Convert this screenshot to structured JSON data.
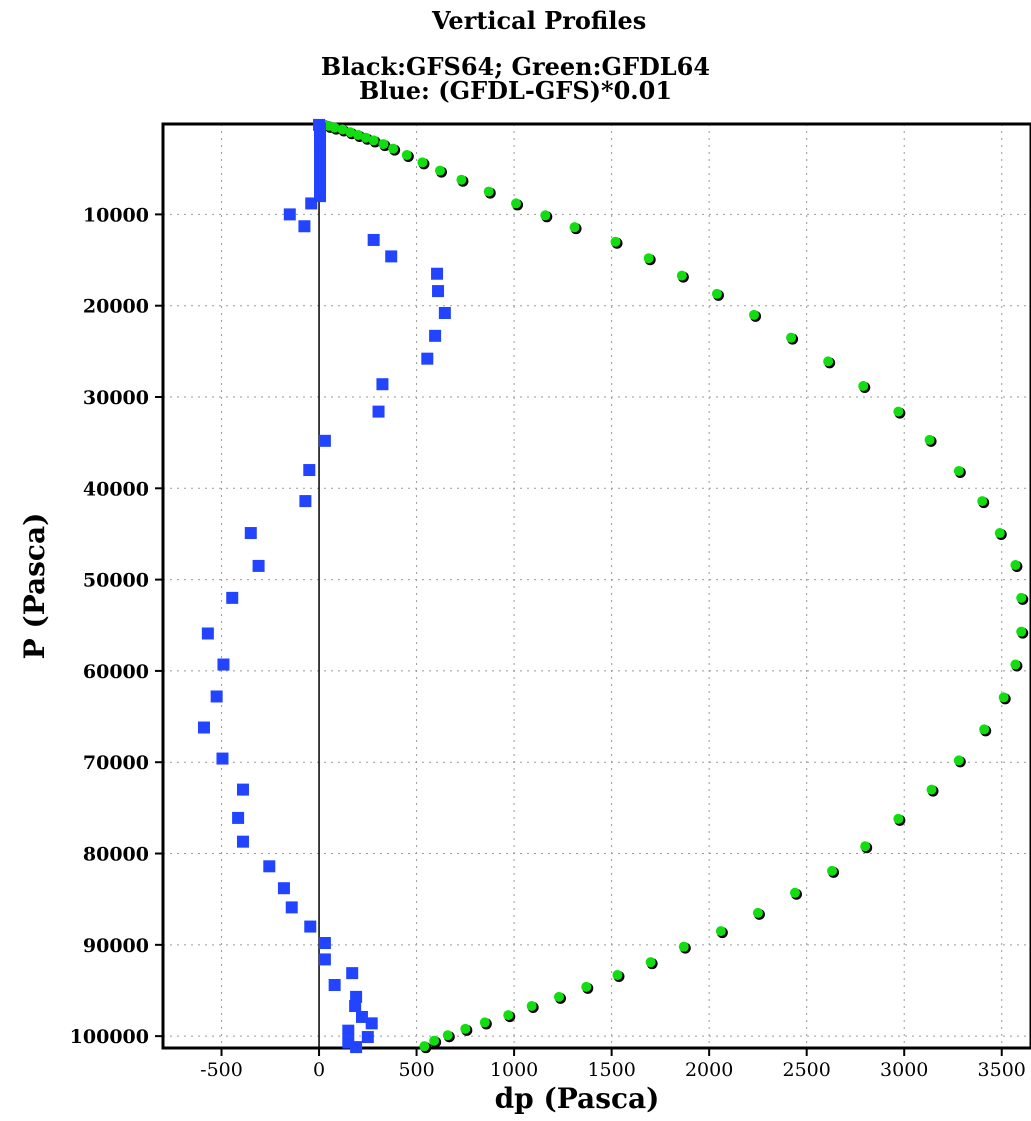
{
  "chart_data": {
    "type": "scatter",
    "title": "Vertical Profiles",
    "subtitle_lines": [
      "Black:GFS64; Green:GFDL64",
      "Blue: (GFDL-GFS)*0.01"
    ],
    "xlabel": "dp (Pasca)",
    "ylabel": "P (Pasca)",
    "xlim": [
      -800,
      3650
    ],
    "ylim": [
      101300,
      100
    ],
    "y_inverted": true,
    "grid": true,
    "xticks": [
      -500,
      0,
      500,
      1000,
      1500,
      2000,
      2500,
      3000,
      3500
    ],
    "xtick_labels": [
      "-500",
      "0",
      "500",
      "1000",
      "1500",
      "2000",
      "2500",
      "3000",
      "3500"
    ],
    "yticks": [
      10000,
      20000,
      30000,
      40000,
      50000,
      60000,
      70000,
      80000,
      90000,
      100000
    ],
    "ytick_labels": [
      "10000",
      "20000",
      "30000",
      "40000",
      "50000",
      "60000",
      "70000",
      "80000",
      "90000",
      "100000"
    ],
    "zero_line_x": 0,
    "series": [
      {
        "name": "Black:GFS64",
        "color": "#000000",
        "marker": "circle",
        "points": [
          [
            20,
            100
          ],
          [
            50,
            300
          ],
          [
            80,
            500
          ],
          [
            120,
            700
          ],
          [
            160,
            1000
          ],
          [
            200,
            1300
          ],
          [
            240,
            1600
          ],
          [
            280,
            1900
          ],
          [
            330,
            2300
          ],
          [
            380,
            2800
          ],
          [
            450,
            3500
          ],
          [
            530,
            4300
          ],
          [
            620,
            5200
          ],
          [
            730,
            6200
          ],
          [
            870,
            7500
          ],
          [
            1010,
            8800
          ],
          [
            1160,
            10100
          ],
          [
            1310,
            11400
          ],
          [
            1520,
            13000
          ],
          [
            1690,
            14800
          ],
          [
            1860,
            16700
          ],
          [
            2040,
            18700
          ],
          [
            2230,
            21000
          ],
          [
            2420,
            23500
          ],
          [
            2610,
            26100
          ],
          [
            2790,
            28800
          ],
          [
            2970,
            31600
          ],
          [
            3130,
            34700
          ],
          [
            3280,
            38100
          ],
          [
            3400,
            41400
          ],
          [
            3490,
            44900
          ],
          [
            3570,
            48400
          ],
          [
            3600,
            52000
          ],
          [
            3600,
            55700
          ],
          [
            3570,
            59300
          ],
          [
            3510,
            62900
          ],
          [
            3410,
            66400
          ],
          [
            3280,
            69800
          ],
          [
            3140,
            73000
          ],
          [
            2970,
            76200
          ],
          [
            2800,
            79200
          ],
          [
            2630,
            81900
          ],
          [
            2440,
            84300
          ],
          [
            2250,
            86500
          ],
          [
            2060,
            88500
          ],
          [
            1870,
            90200
          ],
          [
            1700,
            91900
          ],
          [
            1530,
            93300
          ],
          [
            1370,
            94600
          ],
          [
            1230,
            95700
          ],
          [
            1090,
            96700
          ],
          [
            970,
            97700
          ],
          [
            850,
            98500
          ],
          [
            750,
            99200
          ],
          [
            660,
            99900
          ],
          [
            590,
            100500
          ],
          [
            540,
            101100
          ]
        ]
      },
      {
        "name": "Green:GFDL64",
        "color": "#11dd11",
        "marker": "circle",
        "points": [
          [
            20,
            100
          ],
          [
            50,
            300
          ],
          [
            80,
            500
          ],
          [
            120,
            700
          ],
          [
            160,
            1000
          ],
          [
            200,
            1300
          ],
          [
            240,
            1600
          ],
          [
            280,
            1900
          ],
          [
            330,
            2300
          ],
          [
            380,
            2800
          ],
          [
            450,
            3500
          ],
          [
            530,
            4300
          ],
          [
            620,
            5200
          ],
          [
            730,
            6200
          ],
          [
            870,
            7500
          ],
          [
            1010,
            8800
          ],
          [
            1160,
            10100
          ],
          [
            1310,
            11400
          ],
          [
            1520,
            13000
          ],
          [
            1690,
            14800
          ],
          [
            1860,
            16700
          ],
          [
            2040,
            18700
          ],
          [
            2230,
            21000
          ],
          [
            2420,
            23500
          ],
          [
            2610,
            26100
          ],
          [
            2790,
            28800
          ],
          [
            2970,
            31600
          ],
          [
            3130,
            34700
          ],
          [
            3280,
            38100
          ],
          [
            3400,
            41400
          ],
          [
            3490,
            44900
          ],
          [
            3570,
            48400
          ],
          [
            3600,
            52000
          ],
          [
            3600,
            55700
          ],
          [
            3570,
            59300
          ],
          [
            3510,
            62900
          ],
          [
            3410,
            66400
          ],
          [
            3280,
            69800
          ],
          [
            3140,
            73000
          ],
          [
            2970,
            76200
          ],
          [
            2800,
            79200
          ],
          [
            2630,
            81900
          ],
          [
            2440,
            84300
          ],
          [
            2250,
            86500
          ],
          [
            2060,
            88500
          ],
          [
            1870,
            90200
          ],
          [
            1700,
            91900
          ],
          [
            1530,
            93300
          ],
          [
            1370,
            94600
          ],
          [
            1230,
            95700
          ],
          [
            1090,
            96700
          ],
          [
            970,
            97700
          ],
          [
            850,
            98500
          ],
          [
            750,
            99200
          ],
          [
            660,
            99900
          ],
          [
            590,
            100500
          ],
          [
            540,
            101100
          ]
        ]
      },
      {
        "name": "Blue: (GFDL-GFS)*0.01",
        "color": "#2244ff",
        "marker": "square",
        "points": [
          [
            0,
            200
          ],
          [
            5,
            600
          ],
          [
            5,
            1100
          ],
          [
            5,
            1700
          ],
          [
            5,
            2400
          ],
          [
            5,
            3200
          ],
          [
            5,
            4100
          ],
          [
            5,
            5000
          ],
          [
            5,
            6000
          ],
          [
            5,
            7000
          ],
          [
            5,
            8000
          ],
          [
            -40,
            8800
          ],
          [
            -150,
            10000
          ],
          [
            -75,
            11300
          ],
          [
            280,
            12800
          ],
          [
            370,
            14600
          ],
          [
            605,
            16500
          ],
          [
            610,
            18400
          ],
          [
            645,
            20800
          ],
          [
            595,
            23300
          ],
          [
            555,
            25800
          ],
          [
            325,
            28600
          ],
          [
            305,
            31600
          ],
          [
            30,
            34800
          ],
          [
            -50,
            38000
          ],
          [
            -70,
            41400
          ],
          [
            -350,
            44900
          ],
          [
            -310,
            48500
          ],
          [
            -445,
            52000
          ],
          [
            -570,
            55900
          ],
          [
            -490,
            59300
          ],
          [
            -525,
            62800
          ],
          [
            -590,
            66200
          ],
          [
            -495,
            69600
          ],
          [
            -390,
            73000
          ],
          [
            -415,
            76100
          ],
          [
            -390,
            78700
          ],
          [
            -255,
            81400
          ],
          [
            -180,
            83800
          ],
          [
            -140,
            85900
          ],
          [
            -45,
            88000
          ],
          [
            30,
            89800
          ],
          [
            30,
            91600
          ],
          [
            80,
            94400
          ],
          [
            170,
            93100
          ],
          [
            190,
            95700
          ],
          [
            185,
            96700
          ],
          [
            220,
            97900
          ],
          [
            270,
            98600
          ],
          [
            150,
            99400
          ],
          [
            250,
            100100
          ],
          [
            150,
            100700
          ],
          [
            190,
            101200
          ]
        ]
      }
    ]
  },
  "colors": {
    "axis": "#000000",
    "grid": "#9a9a9a",
    "background": "#ffffff"
  }
}
